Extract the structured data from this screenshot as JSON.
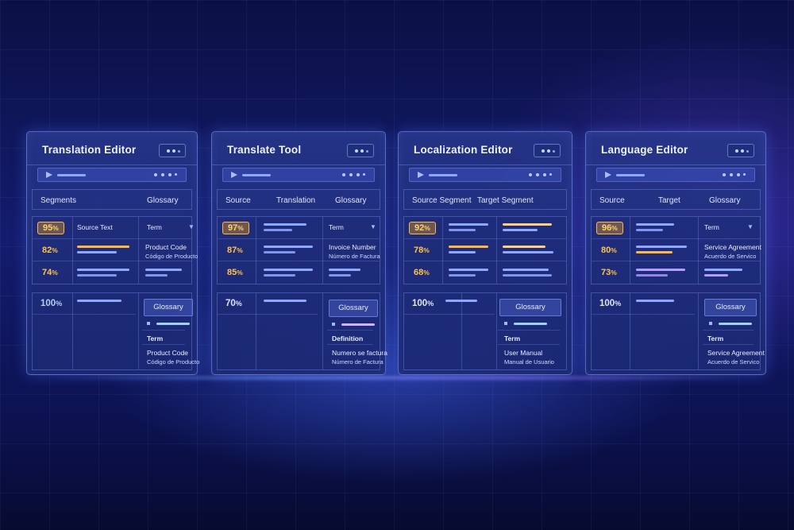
{
  "panels": [
    {
      "title": "Translation Editor",
      "headers": [
        "Segments",
        "Glossary"
      ],
      "rows": [
        {
          "pct": "95",
          "highlighted": true
        },
        {
          "pct": "82",
          "highlighted": false
        },
        {
          "pct": "74",
          "highlighted": false
        }
      ],
      "col2_label": "Source Text",
      "col3_label": "Term",
      "term_value": "Product Code",
      "term_translation": "Código de Producto",
      "bottom_pct": "100",
      "glossary_button": "Glossary",
      "bottom_label": "Term",
      "bottom_value": "Product Code",
      "bottom_translation": "Código de Producto"
    },
    {
      "title": "Translate Tool",
      "headers": [
        "Source",
        "Translation",
        "Glossary"
      ],
      "rows": [
        {
          "pct": "97",
          "highlighted": true
        },
        {
          "pct": "87",
          "highlighted": false
        },
        {
          "pct": "85",
          "highlighted": false
        }
      ],
      "col3_label": "Term",
      "term_value": "Invoice Number",
      "term_translation": "Número de Factura",
      "bottom_pct": "70",
      "glossary_button": "Glossary",
      "bottom_label": "Definition",
      "bottom_value": "Numero se factura",
      "bottom_translation": "Número de Factura"
    },
    {
      "title": "Localization Editor",
      "headers": [
        "Source Segment",
        "Target Segment"
      ],
      "rows": [
        {
          "pct": "92",
          "highlighted": true
        },
        {
          "pct": "78",
          "highlighted": false
        },
        {
          "pct": "68",
          "highlighted": false
        }
      ],
      "bottom_pct": "100",
      "glossary_button": "Glossary",
      "bottom_label": "Term",
      "bottom_value": "User Manual",
      "bottom_translation": "Manual de Usuario"
    },
    {
      "title": "Language Editor",
      "headers": [
        "Source",
        "Target",
        "Glossary"
      ],
      "rows": [
        {
          "pct": "96",
          "highlighted": true
        },
        {
          "pct": "80",
          "highlighted": false
        },
        {
          "pct": "73",
          "highlighted": false
        }
      ],
      "col3_label": "Term",
      "term_value": "Service Agreement",
      "term_translation": "Acuerdo de Servico",
      "bottom_pct": "100",
      "glossary_button": "Glossary",
      "bottom_label": "Term",
      "bottom_value": "Service Agreement",
      "bottom_translation": "Acuerdo de Servico"
    }
  ],
  "percent_sign": "%",
  "colors": {
    "highlight": "#ffb840",
    "pct_text": "#ffc54d",
    "accent_blue": "#8fa8ff",
    "accent_violet": "#b39cff"
  }
}
